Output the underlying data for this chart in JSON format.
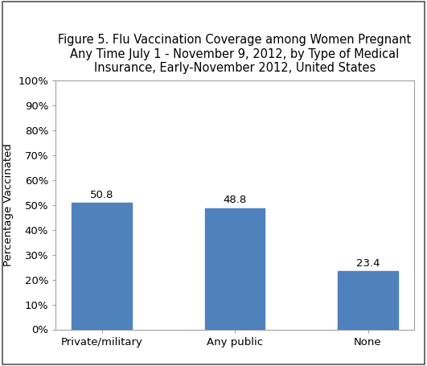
{
  "categories": [
    "Private/military",
    "Any public",
    "None"
  ],
  "values": [
    50.8,
    48.8,
    23.4
  ],
  "bar_color": "#4f81bd",
  "title_line1": "Figure 5. Flu Vaccination Coverage among Women Pregnant",
  "title_line2": "Any Time July 1 - November 9, 2012, by Type of Medical",
  "title_line3": "Insurance, Early-November 2012, United States",
  "ylabel": "Percentage Vaccinated",
  "ylim": [
    0,
    100
  ],
  "yticks": [
    0,
    10,
    20,
    30,
    40,
    50,
    60,
    70,
    80,
    90,
    100
  ],
  "ytick_labels": [
    "0%",
    "10%",
    "20%",
    "30%",
    "40%",
    "50%",
    "60%",
    "70%",
    "80%",
    "90%",
    "100%"
  ],
  "bar_width": 0.45,
  "title_fontsize": 10.5,
  "axis_label_fontsize": 9.5,
  "tick_fontsize": 9.5,
  "value_label_fontsize": 9.5,
  "background_color": "#ffffff",
  "border_color": "#a0a0a0"
}
